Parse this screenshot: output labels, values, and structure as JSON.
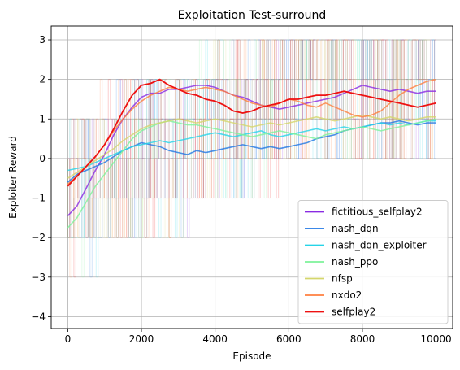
{
  "chart_data": {
    "type": "line",
    "title": "Exploitation Test-surround",
    "xlabel": "Episode",
    "ylabel": "Exploiter Reward",
    "xlim": [
      -450,
      10450
    ],
    "ylim": [
      -4.3,
      3.35
    ],
    "xticks": [
      0,
      2000,
      4000,
      6000,
      8000,
      10000
    ],
    "yticks": [
      -4,
      -3,
      -2,
      -1,
      0,
      1,
      2,
      3
    ],
    "grid": true,
    "legend_position": "lower-right",
    "raw_reward_range": [
      -3,
      3
    ],
    "series": [
      {
        "name": "fictitious_selfplay2",
        "color": "#8a2be2",
        "x": [
          0,
          250,
          500,
          750,
          1000,
          1250,
          1500,
          1750,
          2000,
          2250,
          2500,
          2750,
          3000,
          3250,
          3500,
          3750,
          4000,
          4250,
          4500,
          4750,
          5000,
          5250,
          5500,
          5750,
          6000,
          6250,
          6500,
          6750,
          7000,
          7250,
          7500,
          7750,
          8000,
          8250,
          8500,
          8750,
          9000,
          9250,
          9500,
          9750,
          10000
        ],
        "values": [
          -1.45,
          -1.2,
          -0.75,
          -0.3,
          0.1,
          0.6,
          1.0,
          1.3,
          1.55,
          1.65,
          1.65,
          1.75,
          1.75,
          1.8,
          1.85,
          1.85,
          1.8,
          1.7,
          1.6,
          1.55,
          1.45,
          1.35,
          1.3,
          1.25,
          1.3,
          1.35,
          1.4,
          1.45,
          1.5,
          1.55,
          1.65,
          1.75,
          1.85,
          1.8,
          1.75,
          1.7,
          1.75,
          1.7,
          1.65,
          1.7,
          1.7
        ]
      },
      {
        "name": "nash_dqn",
        "color": "#1f77e4",
        "x": [
          0,
          250,
          500,
          750,
          1000,
          1250,
          1500,
          1750,
          2000,
          2250,
          2500,
          2750,
          3000,
          3250,
          3500,
          3750,
          4000,
          4250,
          4500,
          4750,
          5000,
          5250,
          5500,
          5750,
          6000,
          6250,
          6500,
          6750,
          7000,
          7250,
          7500,
          7750,
          8000,
          8250,
          8500,
          8750,
          9000,
          9250,
          9500,
          9750,
          10000
        ],
        "values": [
          -0.6,
          -0.4,
          -0.3,
          -0.2,
          -0.1,
          0.05,
          0.2,
          0.3,
          0.4,
          0.35,
          0.3,
          0.2,
          0.15,
          0.1,
          0.2,
          0.15,
          0.2,
          0.25,
          0.3,
          0.35,
          0.3,
          0.25,
          0.3,
          0.25,
          0.3,
          0.35,
          0.4,
          0.5,
          0.55,
          0.6,
          0.7,
          0.75,
          0.8,
          0.85,
          0.9,
          0.9,
          0.95,
          0.9,
          0.85,
          0.9,
          0.9
        ]
      },
      {
        "name": "nash_dqn_exploiter",
        "color": "#26d4e8",
        "x": [
          0,
          250,
          500,
          750,
          1000,
          1250,
          1500,
          1750,
          2000,
          2250,
          2500,
          2750,
          3000,
          3250,
          3500,
          3750,
          4000,
          4250,
          4500,
          4750,
          5000,
          5250,
          5500,
          5750,
          6000,
          6250,
          6500,
          6750,
          7000,
          7250,
          7500,
          7750,
          8000,
          8250,
          8500,
          8750,
          9000,
          9250,
          9500,
          9750,
          10000
        ],
        "values": [
          -0.3,
          -0.25,
          -0.2,
          -0.1,
          0.0,
          0.1,
          0.2,
          0.3,
          0.35,
          0.4,
          0.45,
          0.4,
          0.45,
          0.5,
          0.55,
          0.6,
          0.65,
          0.6,
          0.55,
          0.6,
          0.65,
          0.7,
          0.6,
          0.55,
          0.6,
          0.65,
          0.7,
          0.75,
          0.7,
          0.75,
          0.8,
          0.75,
          0.8,
          0.85,
          0.9,
          0.85,
          0.9,
          0.85,
          0.9,
          0.95,
          0.95
        ]
      },
      {
        "name": "nash_ppo",
        "color": "#7df29a",
        "x": [
          0,
          250,
          500,
          750,
          1000,
          1250,
          1500,
          1750,
          2000,
          2250,
          2500,
          2750,
          3000,
          3250,
          3500,
          3750,
          4000,
          4250,
          4500,
          4750,
          5000,
          5250,
          5500,
          5750,
          6000,
          6250,
          6500,
          6750,
          7000,
          7250,
          7500,
          7750,
          8000,
          8250,
          8500,
          8750,
          9000,
          9250,
          9500,
          9750,
          10000
        ],
        "values": [
          -1.75,
          -1.5,
          -1.1,
          -0.7,
          -0.4,
          -0.1,
          0.2,
          0.5,
          0.7,
          0.8,
          0.9,
          0.95,
          0.9,
          0.85,
          0.85,
          0.8,
          0.75,
          0.7,
          0.65,
          0.6,
          0.55,
          0.6,
          0.65,
          0.7,
          0.65,
          0.6,
          0.55,
          0.5,
          0.6,
          0.65,
          0.7,
          0.75,
          0.8,
          0.75,
          0.7,
          0.75,
          0.8,
          0.85,
          0.9,
          0.95,
          1.0
        ]
      },
      {
        "name": "nfsp",
        "color": "#d4d66c",
        "x": [
          0,
          250,
          500,
          750,
          1000,
          1250,
          1500,
          1750,
          2000,
          2250,
          2500,
          2750,
          3000,
          3250,
          3500,
          3750,
          4000,
          4250,
          4500,
          4750,
          5000,
          5250,
          5500,
          5750,
          6000,
          6250,
          6500,
          6750,
          7000,
          7250,
          7500,
          7750,
          8000,
          8250,
          8500,
          8750,
          9000,
          9250,
          9500,
          9750,
          10000
        ],
        "values": [
          -0.5,
          -0.35,
          -0.2,
          -0.05,
          0.1,
          0.25,
          0.45,
          0.6,
          0.75,
          0.85,
          0.9,
          0.95,
          1.0,
          0.95,
          0.9,
          0.95,
          1.0,
          0.95,
          0.9,
          0.85,
          0.8,
          0.85,
          0.9,
          0.85,
          0.9,
          0.95,
          1.0,
          1.05,
          1.0,
          0.95,
          1.0,
          1.05,
          1.1,
          1.05,
          1.0,
          1.05,
          1.0,
          0.95,
          1.0,
          1.05,
          1.05
        ]
      },
      {
        "name": "nxdo2",
        "color": "#ff7f3f",
        "x": [
          0,
          250,
          500,
          750,
          1000,
          1250,
          1500,
          1750,
          2000,
          2250,
          2500,
          2750,
          3000,
          3250,
          3500,
          3750,
          4000,
          4250,
          4500,
          4750,
          5000,
          5250,
          5500,
          5750,
          6000,
          6250,
          6500,
          6750,
          7000,
          7250,
          7500,
          7750,
          8000,
          8250,
          8500,
          8750,
          9000,
          9250,
          9500,
          9750,
          10000
        ],
        "values": [
          -0.65,
          -0.45,
          -0.2,
          0.05,
          0.35,
          0.7,
          1.0,
          1.25,
          1.45,
          1.6,
          1.7,
          1.8,
          1.75,
          1.7,
          1.75,
          1.8,
          1.75,
          1.7,
          1.6,
          1.5,
          1.4,
          1.35,
          1.3,
          1.4,
          1.5,
          1.45,
          1.35,
          1.3,
          1.4,
          1.3,
          1.2,
          1.1,
          1.05,
          1.1,
          1.2,
          1.4,
          1.6,
          1.75,
          1.85,
          1.95,
          2.0
        ]
      },
      {
        "name": "selfplay2",
        "color": "#ee1111",
        "x": [
          0,
          250,
          500,
          750,
          1000,
          1250,
          1500,
          1750,
          2000,
          2250,
          2500,
          2750,
          3000,
          3250,
          3500,
          3750,
          4000,
          4250,
          4500,
          4750,
          5000,
          5250,
          5500,
          5750,
          6000,
          6250,
          6500,
          6750,
          7000,
          7250,
          7500,
          7750,
          8000,
          8250,
          8500,
          8750,
          9000,
          9250,
          9500,
          9750,
          10000
        ],
        "values": [
          -0.7,
          -0.45,
          -0.2,
          0.05,
          0.35,
          0.75,
          1.2,
          1.6,
          1.85,
          1.9,
          2.0,
          1.85,
          1.75,
          1.65,
          1.6,
          1.5,
          1.45,
          1.35,
          1.2,
          1.15,
          1.2,
          1.3,
          1.35,
          1.4,
          1.5,
          1.5,
          1.55,
          1.6,
          1.6,
          1.65,
          1.7,
          1.65,
          1.6,
          1.55,
          1.5,
          1.45,
          1.4,
          1.35,
          1.3,
          1.35,
          1.4
        ]
      }
    ]
  }
}
